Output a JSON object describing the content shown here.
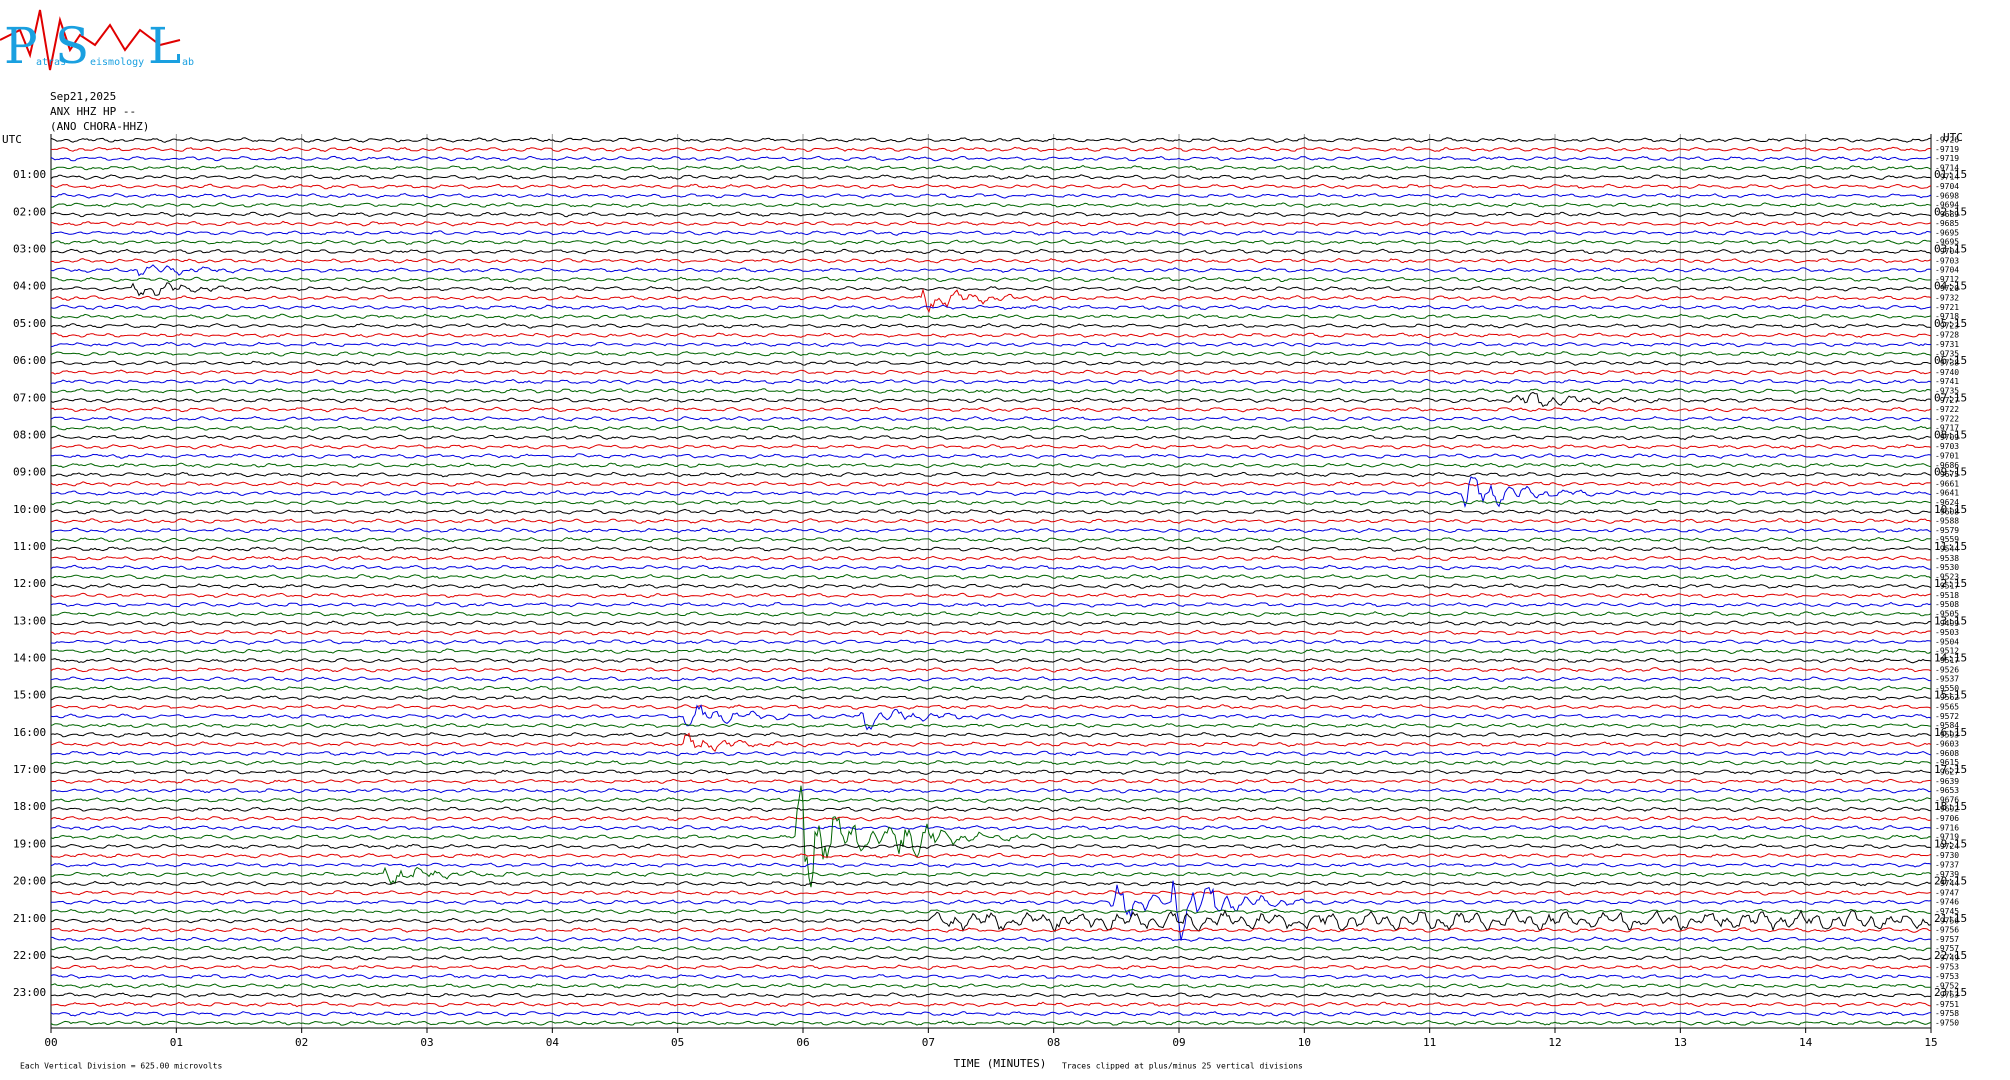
{
  "chart_data": {
    "type": "helicorder",
    "logo": {
      "letters": [
        "P",
        "S",
        "L"
      ],
      "words": [
        "atras",
        "eismology",
        "ab"
      ]
    },
    "date": "Sep21,2025",
    "station": "ANX HHZ HP --",
    "site": "(ANO CHORA-HHZ)",
    "left_title": "UTC",
    "right_title": "UTC",
    "hours_left": [
      "01:00",
      "02:00",
      "03:00",
      "04:00",
      "05:00",
      "06:00",
      "07:00",
      "08:00",
      "09:00",
      "10:00",
      "11:00",
      "12:00",
      "13:00",
      "14:00",
      "15:00",
      "16:00",
      "17:00",
      "18:00",
      "19:00",
      "20:00",
      "21:00",
      "22:00",
      "23:00"
    ],
    "hours_right": [
      "01:15",
      "02:15",
      "03:15",
      "04:15",
      "05:15",
      "06:15",
      "07:15",
      "08:15",
      "09:15",
      "10:15",
      "11:15",
      "12:15",
      "13:15",
      "14:15",
      "15:15",
      "16:15",
      "17:15",
      "18:15",
      "19:15",
      "20:15",
      "21:15",
      "22:15",
      "23:15"
    ],
    "offsets": [
      -9726,
      -9719,
      -9719,
      -9714,
      -9714,
      -9704,
      -9698,
      -9694,
      -9689,
      -9685,
      -9695,
      -9695,
      -9704,
      -9703,
      -9704,
      -9712,
      -9720,
      -9732,
      -9721,
      -9718,
      -9723,
      -9728,
      -9731,
      -9735,
      -9738,
      -9740,
      -9741,
      -9735,
      -9727,
      -9722,
      -9722,
      -9717,
      -9709,
      -9703,
      -9701,
      -9686,
      -9675,
      -9661,
      -9641,
      -9624,
      -9608,
      -9588,
      -9579,
      -9559,
      -9544,
      -9538,
      -9530,
      -9523,
      -9517,
      -9518,
      -9508,
      -9505,
      -9499,
      -9503,
      -9504,
      -9512,
      -9517,
      -9526,
      -9537,
      -9550,
      -9562,
      -9565,
      -9572,
      -9584,
      -9593,
      -9603,
      -9608,
      -9615,
      -9627,
      -9639,
      -9653,
      -9676,
      -9692,
      -9706,
      -9716,
      -9719,
      -9724,
      -9730,
      -9737,
      -9739,
      -9744,
      -9747,
      -9746,
      -9745,
      -9756,
      -9756,
      -9757,
      -9757,
      -9749,
      -9753,
      -9753,
      -9752,
      -9753,
      -9751,
      -9758,
      -9750
    ],
    "trace_colors": [
      "#000000",
      "#e00000",
      "#0000e0",
      "#006400"
    ],
    "xlabel": "TIME (MINUTES)",
    "xlim": [
      0,
      15
    ],
    "xticks": [
      {
        "value": 0,
        "label": "00"
      },
      {
        "value": 1,
        "label": "01"
      },
      {
        "value": 2,
        "label": "02"
      },
      {
        "value": 3,
        "label": "03"
      },
      {
        "value": 4,
        "label": "04"
      },
      {
        "value": 5,
        "label": "05"
      },
      {
        "value": 6,
        "label": "06"
      },
      {
        "value": 7,
        "label": "07"
      },
      {
        "value": 8,
        "label": "08"
      },
      {
        "value": 9,
        "label": "09"
      },
      10,
      11,
      12,
      13,
      14,
      15
    ],
    "scale_note": "Each Vertical Division =  625.00 microvolts",
    "clip_note": "Traces clipped at plus/minus 25 vertical divisions",
    "grid": true
  }
}
